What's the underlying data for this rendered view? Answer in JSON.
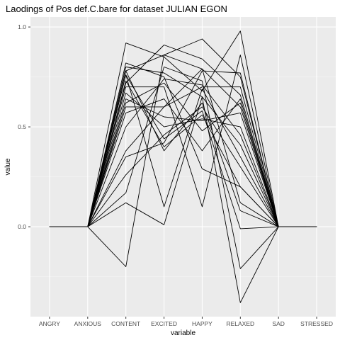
{
  "chart_data": {
    "type": "line",
    "title": "Laodings of Pos def.C.bare for dataset JULIAN EGON",
    "xlabel": "variable",
    "ylabel": "value",
    "categories": [
      "ANGRY",
      "ANXIOUS",
      "CONTENT",
      "EXCITED",
      "HAPPY",
      "RELAXED",
      "SAD",
      "STRESSED"
    ],
    "ylim": [
      -0.45,
      1.05
    ],
    "yticks": [
      0.0,
      0.5,
      1.0
    ],
    "ytick_labels": [
      "0.0",
      "0.5",
      "1.0"
    ],
    "grid": true,
    "legend": "none",
    "panel_color": "#ebebeb",
    "line_color": "#000000",
    "series": [
      {
        "values": [
          0,
          0,
          0.92,
          0.85,
          0.68,
          0.98,
          0,
          0
        ]
      },
      {
        "values": [
          0,
          0,
          -0.2,
          0.86,
          0.79,
          0.12,
          0,
          0
        ]
      },
      {
        "values": [
          0,
          0,
          0.82,
          0.75,
          0.29,
          0.2,
          0,
          0
        ]
      },
      {
        "values": [
          0,
          0,
          0.78,
          0.86,
          0.94,
          0.75,
          0,
          0
        ]
      },
      {
        "values": [
          0,
          0,
          0.12,
          0.01,
          0.65,
          -0.38,
          0,
          0
        ]
      },
      {
        "values": [
          0,
          0,
          0.72,
          0.91,
          0.84,
          0.66,
          0,
          0
        ]
      },
      {
        "values": [
          0,
          0,
          0.7,
          0.7,
          0.1,
          0.86,
          0,
          0
        ]
      },
      {
        "values": [
          0,
          0,
          0.35,
          0.42,
          0.78,
          0.77,
          0,
          0
        ]
      },
      {
        "values": [
          0,
          0,
          0.17,
          0.8,
          0.73,
          -0.21,
          0,
          0
        ]
      },
      {
        "values": [
          0,
          0,
          0.76,
          0.44,
          0.58,
          -0.01,
          0,
          0
        ]
      },
      {
        "values": [
          0,
          0,
          0.6,
          0.6,
          0.79,
          0.6,
          0,
          0
        ]
      },
      {
        "values": [
          0,
          0,
          0.8,
          0.77,
          0.65,
          0.41,
          0,
          0
        ]
      },
      {
        "values": [
          0,
          0,
          0.76,
          0.1,
          0.69,
          0.35,
          0,
          0
        ]
      },
      {
        "values": [
          0,
          0,
          0.64,
          0.55,
          0.53,
          0.57,
          0,
          0
        ]
      },
      {
        "values": [
          0,
          0,
          0.78,
          0.38,
          0.62,
          0.08,
          0,
          0
        ]
      },
      {
        "values": [
          0,
          0,
          0.57,
          0.64,
          0.38,
          0.64,
          0,
          0
        ]
      },
      {
        "values": [
          0,
          0,
          0.38,
          0.6,
          0.7,
          0.7,
          0,
          0
        ]
      },
      {
        "values": [
          0,
          0,
          0.26,
          0.46,
          0.6,
          0.3,
          0,
          0
        ]
      },
      {
        "values": [
          0,
          0,
          0.5,
          0.74,
          0.71,
          0.46,
          0,
          0
        ]
      },
      {
        "values": [
          0,
          0,
          0.67,
          0.5,
          0.54,
          0.5,
          0,
          0
        ]
      },
      {
        "values": [
          0,
          0,
          0.73,
          0.4,
          0.56,
          0.2,
          0,
          0
        ]
      },
      {
        "values": [
          0,
          0,
          0.62,
          0.72,
          0.48,
          0.62,
          0,
          0
        ]
      }
    ]
  }
}
